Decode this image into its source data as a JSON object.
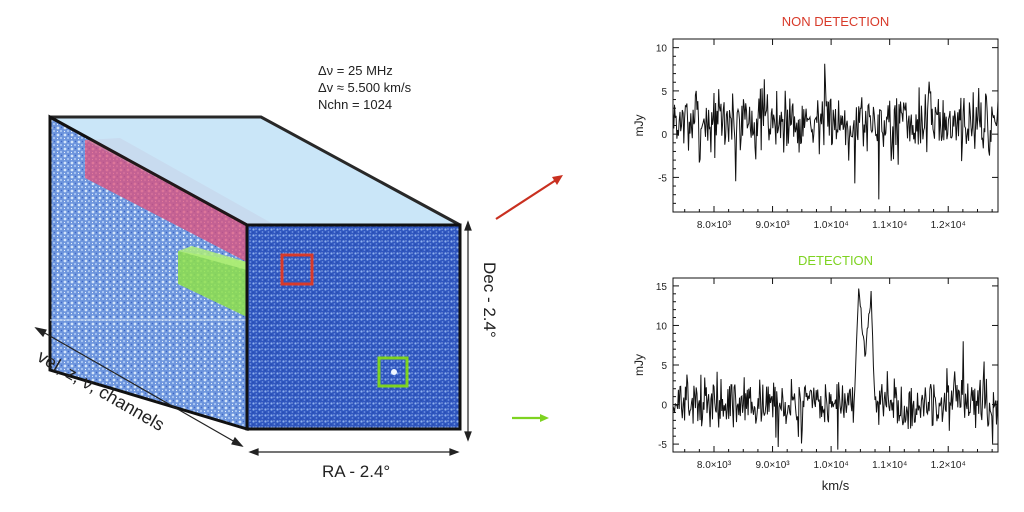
{
  "cube": {
    "params": [
      "Δν = 25 MHz",
      "Δv ≈ 5.500 km/s",
      "Nchn = 1024"
    ],
    "depth_label": "vel, z, ν, channels",
    "ra_label": "RA  -  2.4°",
    "dec_label": "Dec  -  2.4°",
    "colors": {
      "background": "#3a63c4",
      "top": "#c5e4f8",
      "edge": "#111111",
      "non_detection_box": "#d83a2a",
      "detection_box": "#7ed321",
      "non_detection_slab": "#e0507a",
      "detection_slab": "#8ee04a"
    }
  },
  "arrows": {
    "non_detection_color": "#c93020",
    "detection_color": "#7ed321"
  },
  "chart_data": [
    {
      "type": "line",
      "title": "NON DETECTION",
      "title_color": "#d83a2a",
      "xlabel": "",
      "ylabel": "mJy",
      "xlim": [
        7300,
        12850
      ],
      "ylim": [
        -9,
        11
      ],
      "yticks": [
        -5,
        0,
        5,
        10
      ],
      "xticks": [
        "8.0×10³",
        "9.0×10³",
        "1.0×10⁴",
        "1.1×10⁴",
        "1.2×10⁴"
      ],
      "xtick_values": [
        8000,
        9000,
        10000,
        11000,
        12000
      ],
      "series": [
        {
          "noise_rms": 3,
          "offset": 1.5,
          "seed": 7,
          "features": []
        }
      ]
    },
    {
      "type": "line",
      "title": "DETECTION",
      "title_color": "#7ed321",
      "xlabel": "km/s",
      "ylabel": "mJy",
      "xlim": [
        7300,
        12850
      ],
      "ylim": [
        -6,
        16
      ],
      "yticks": [
        -5,
        0,
        5,
        10,
        15
      ],
      "xticks": [
        "8.0×10³",
        "9.0×10³",
        "1.0×10⁴",
        "1.1×10⁴",
        "1.2×10⁴"
      ],
      "xtick_values": [
        8000,
        9000,
        10000,
        11000,
        12000
      ],
      "series": [
        {
          "noise_rms": 2.5,
          "offset": 0,
          "seed": 13,
          "features": [
            {
              "x_start": 10400,
              "x_end": 10750,
              "peak_left": 15,
              "trough": 7,
              "peak_right": 14
            }
          ]
        }
      ]
    }
  ]
}
